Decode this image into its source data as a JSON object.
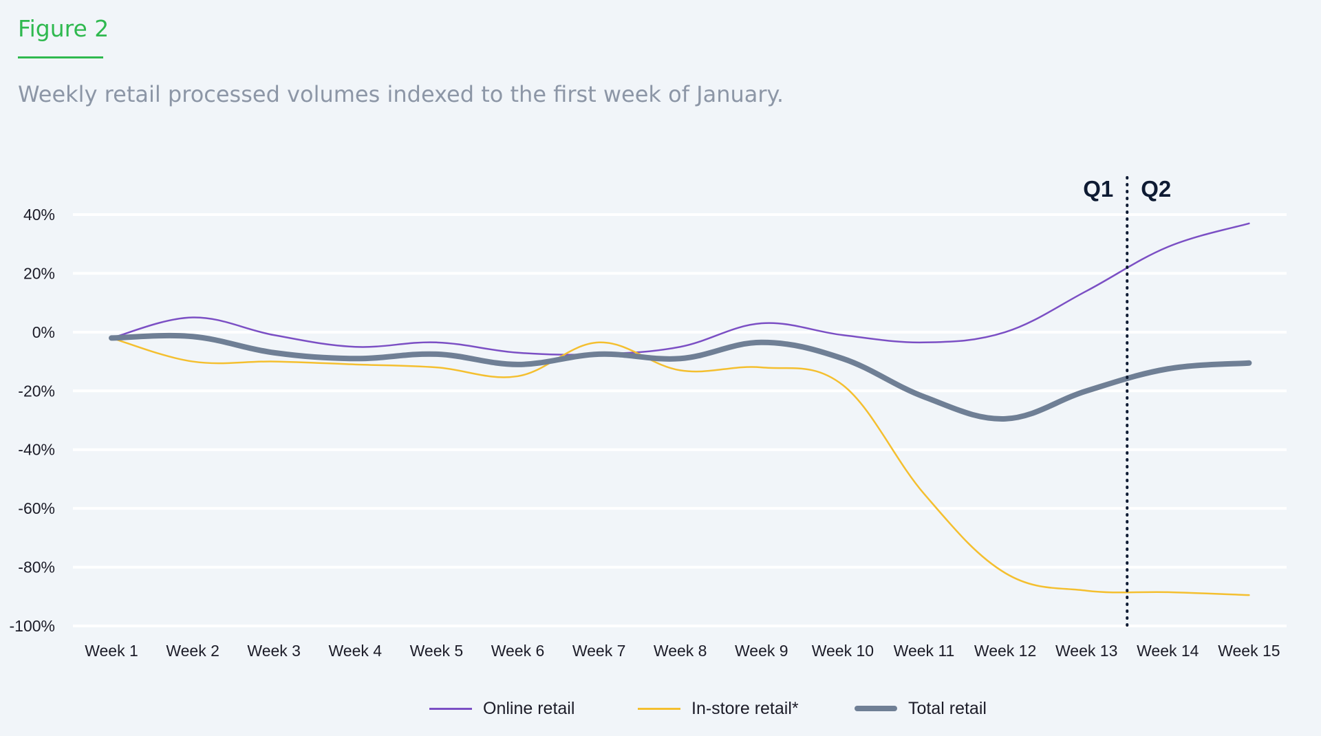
{
  "header": {
    "figure_label": "Figure 2",
    "subtitle": "Weekly retail processed volumes indexed to the first week of January."
  },
  "colors": {
    "accent": "#2fb94f",
    "online": "#7b4fc4",
    "instore": "#f4bf2f",
    "total": "#6f7f95",
    "grid": "#ffffff",
    "quarter_text": "#0e1b33"
  },
  "chart_data": {
    "type": "line",
    "categories": [
      "Week 1",
      "Week 2",
      "Week 3",
      "Week 4",
      "Week 5",
      "Week 6",
      "Week 7",
      "Week 8",
      "Week 9",
      "Week 10",
      "Week 11",
      "Week 12",
      "Week 13",
      "Week 14",
      "Week 15"
    ],
    "series": [
      {
        "name": "Online retail",
        "values": [
          -2,
          5,
          -1,
          -5,
          -3.5,
          -7,
          -7.5,
          -5,
          3,
          -1,
          -3.5,
          0,
          14,
          29,
          37
        ]
      },
      {
        "name": "In-store retail*",
        "values": [
          -2,
          -10,
          -10,
          -11,
          -12,
          -15,
          -3.5,
          -13,
          -12,
          -18,
          -55,
          -82,
          -88,
          -88.5,
          -89.5
        ]
      },
      {
        "name": "Total retail",
        "values": [
          -2,
          -1.5,
          -7,
          -9,
          -7.5,
          -11,
          -7.5,
          -9,
          -3.5,
          -9,
          -22,
          -29.5,
          -20,
          -12.5,
          -10.5
        ]
      }
    ],
    "ylim": [
      -100,
      40
    ],
    "yticks": [
      "-100%",
      "-80%",
      "-60%",
      "-40%",
      "-20%",
      "0%",
      "20%",
      "40%"
    ],
    "ytick_values": [
      -100,
      -80,
      -60,
      -40,
      -20,
      0,
      20,
      40
    ],
    "grid": true,
    "legend_position": "bottom-center",
    "annotations": {
      "divider_between": [
        "Week 13",
        "Week 14"
      ],
      "left_label": "Q1",
      "right_label": "Q2"
    }
  }
}
